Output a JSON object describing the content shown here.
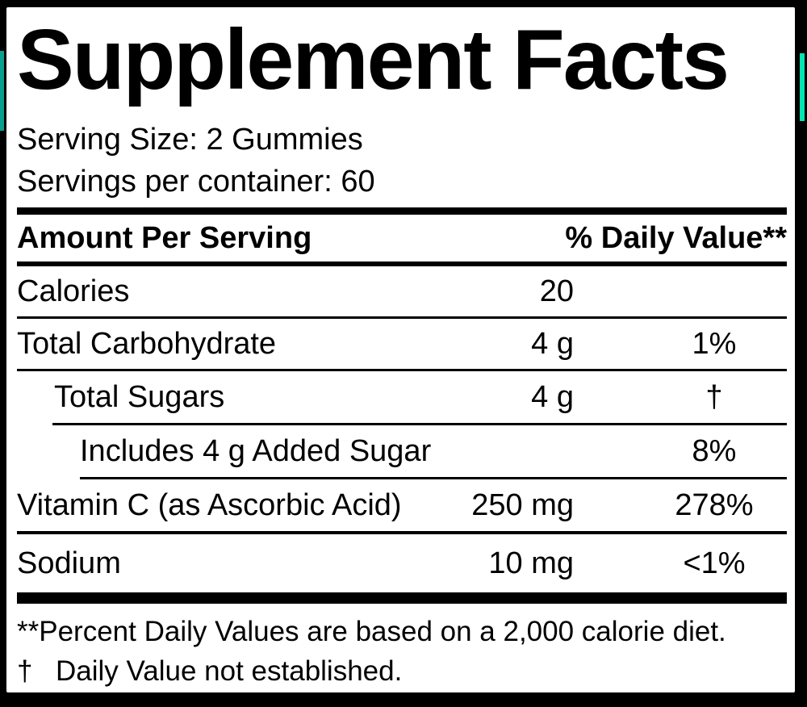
{
  "label": {
    "title": "Supplement Facts",
    "serving_size": "Serving Size: 2 Gummies",
    "servings_per_container": "Servings per container: 60",
    "header": {
      "amount_col": "Amount Per Serving",
      "dv_col": "% Daily Value**"
    },
    "rows": [
      {
        "name": "Calories",
        "amount": "20",
        "dv": ""
      },
      {
        "name": "Total Carbohydrate",
        "amount": "4 g",
        "dv": "1%"
      },
      {
        "name": "Total Sugars",
        "amount": "4 g",
        "dv": "†"
      },
      {
        "name": "Includes 4 g Added Sugar",
        "amount": "",
        "dv": "8%"
      },
      {
        "name": "Vitamin C (as Ascorbic Acid)",
        "amount": "250 mg",
        "dv": "278%"
      },
      {
        "name": "Sodium",
        "amount": "10 mg",
        "dv": "<1%"
      }
    ],
    "footnotes": [
      {
        "symbol": "**",
        "text": "Percent Daily Values are based on a 2,000 calorie diet."
      },
      {
        "symbol": "†",
        "text": "Daily Value not established."
      }
    ],
    "colors": {
      "panel_background": "#ffffff",
      "border": "#000000",
      "accent_left": "#0aa08f",
      "accent_right": "#00e5b3"
    }
  }
}
